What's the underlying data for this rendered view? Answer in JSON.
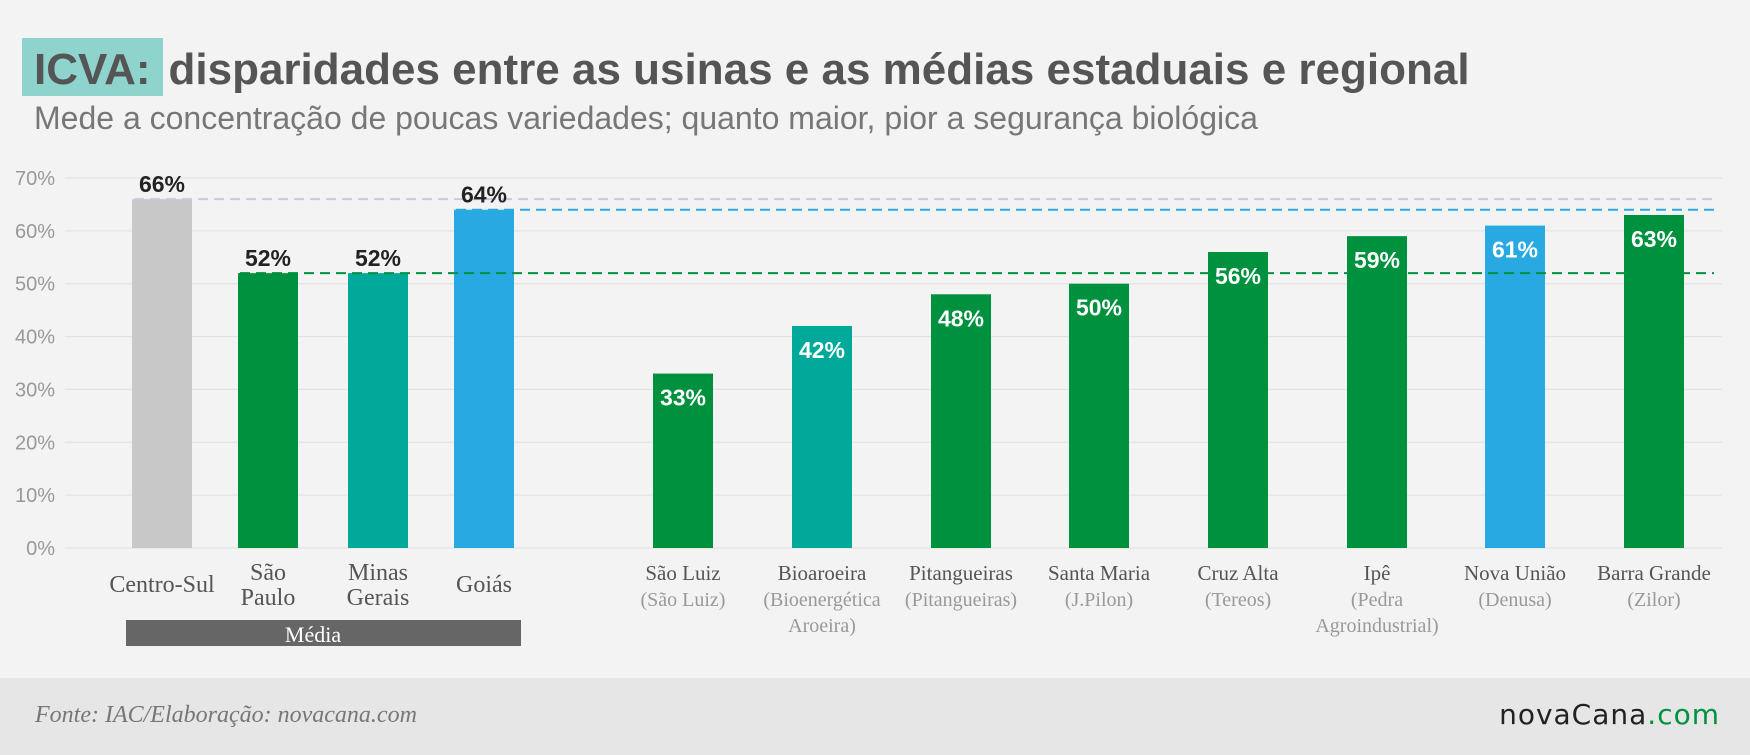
{
  "title": {
    "highlight": "ICVA:",
    "rest": "disparidades entre as usinas e as médias estaduais e regional"
  },
  "subtitle": "Mede a concentração de poucas variedades; quanto maior, pior a segurança biológica",
  "footer": {
    "source": "Fonte: IAC/Elaboração: novacana.com",
    "logo_main": "novaCana",
    "logo_suffix": ".com"
  },
  "colors": {
    "grey": "#c8c8c8",
    "green": "#00913f",
    "teal": "#00a99a",
    "blue": "#29a9e1",
    "media_band": "#666666",
    "grid": "#e0e0e0",
    "axis_text": "#999999"
  },
  "chart_data": {
    "type": "bar",
    "ylim": [
      0,
      70
    ],
    "yticks": [
      "0%",
      "10%",
      "20%",
      "30%",
      "40%",
      "50%",
      "60%",
      "70%"
    ],
    "grid": true,
    "group_label": "Média",
    "bars": [
      {
        "label": [
          "Centro-Sul"
        ],
        "sublabel": [],
        "value": 66,
        "display": "66%",
        "color": "grey",
        "label_inside": false
      },
      {
        "label": [
          "São",
          "Paulo"
        ],
        "sublabel": [],
        "value": 52,
        "display": "52%",
        "color": "green",
        "label_inside": false
      },
      {
        "label": [
          "Minas",
          "Gerais"
        ],
        "sublabel": [],
        "value": 52,
        "display": "52%",
        "color": "teal",
        "label_inside": false
      },
      {
        "label": [
          "Goiás"
        ],
        "sublabel": [],
        "value": 64,
        "display": "64%",
        "color": "blue",
        "label_inside": false
      },
      {
        "label": [
          "São Luiz"
        ],
        "sublabel": [
          "(São Luiz)"
        ],
        "value": 33,
        "display": "33%",
        "color": "green",
        "label_inside": true
      },
      {
        "label": [
          "Bioaroeira"
        ],
        "sublabel": [
          "(Bioenergética",
          "Aroeira)"
        ],
        "value": 42,
        "display": "42%",
        "color": "teal",
        "label_inside": true
      },
      {
        "label": [
          "Pitangueiras"
        ],
        "sublabel": [
          "(Pitangueiras)"
        ],
        "value": 48,
        "display": "48%",
        "color": "green",
        "label_inside": true
      },
      {
        "label": [
          "Santa Maria"
        ],
        "sublabel": [
          "(J.Pilon)"
        ],
        "value": 50,
        "display": "50%",
        "color": "green",
        "label_inside": true
      },
      {
        "label": [
          "Cruz Alta"
        ],
        "sublabel": [
          "(Tereos)"
        ],
        "value": 56,
        "display": "56%",
        "color": "green",
        "label_inside": true
      },
      {
        "label": [
          "Ipê"
        ],
        "sublabel": [
          "(Pedra",
          "Agroindustrial)"
        ],
        "value": 59,
        "display": "59%",
        "color": "green",
        "label_inside": true
      },
      {
        "label": [
          "Nova União"
        ],
        "sublabel": [
          "(Denusa)"
        ],
        "value": 61,
        "display": "61%",
        "color": "blue",
        "label_inside": true
      },
      {
        "label": [
          "Barra Grande"
        ],
        "sublabel": [
          "(Zilor)"
        ],
        "value": 63,
        "display": "63%",
        "color": "green",
        "label_inside": true
      }
    ],
    "reference_lines": [
      {
        "value": 66,
        "color": "#c5cbe0",
        "from_bar": 0
      },
      {
        "value": 64,
        "color": "#29a9e1",
        "from_bar": 3
      },
      {
        "value": 52,
        "color": "#00913f",
        "from_bar": 1
      }
    ]
  }
}
